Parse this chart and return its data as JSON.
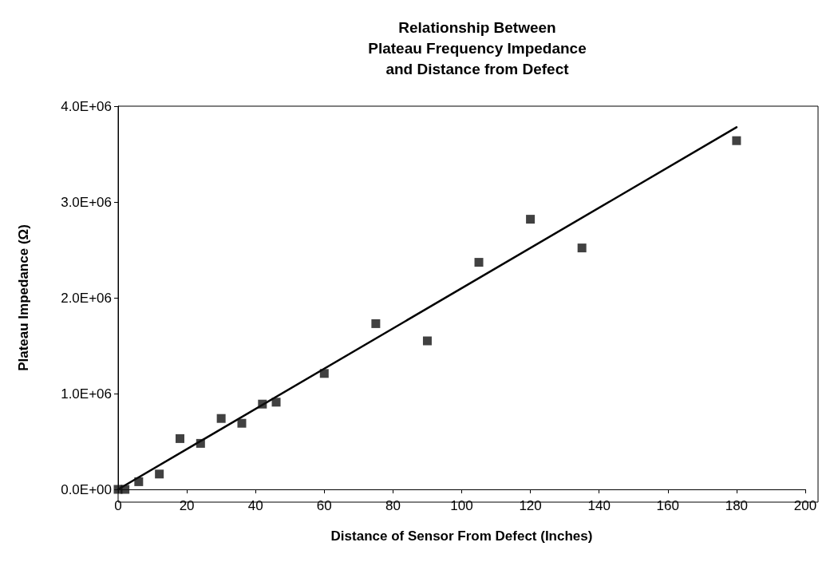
{
  "chart_data": {
    "type": "scatter",
    "title": "Relationship Between\nPlateau Frequency Impedance\nand Distance from Defect",
    "xlabel": "Distance of Sensor From Defect (Inches)",
    "ylabel": "Plateau Impedance (Ω)",
    "xlim": [
      0,
      200
    ],
    "xticks": [
      0,
      20,
      40,
      60,
      80,
      100,
      120,
      140,
      160,
      180,
      200
    ],
    "ylim": [
      0,
      4000000
    ],
    "yticks": [
      {
        "value": 0,
        "label": "0.0E+00"
      },
      {
        "value": 1000000,
        "label": "1.0E+06"
      },
      {
        "value": 2000000,
        "label": "2.0E+06"
      },
      {
        "value": 3000000,
        "label": "3.0E+06"
      },
      {
        "value": 4000000,
        "label": "4.0E+06"
      }
    ],
    "grid": false,
    "marker": "square",
    "series": [
      {
        "type": "scatter",
        "color": "#111111",
        "x": [
          0,
          2,
          6,
          12,
          18,
          24,
          30,
          36,
          42,
          46,
          60,
          75,
          90,
          105,
          120,
          135,
          180
        ],
        "values": [
          0,
          0,
          80000,
          160000,
          530000,
          480000,
          740000,
          690000,
          890000,
          910000,
          1210000,
          1730000,
          1550000,
          2370000,
          2820000,
          2520000,
          3640000
        ]
      },
      {
        "type": "line",
        "color": "#000000",
        "marker": "none",
        "line_style": "solid",
        "x": [
          0,
          180
        ],
        "values": [
          0,
          3780000
        ]
      }
    ]
  }
}
